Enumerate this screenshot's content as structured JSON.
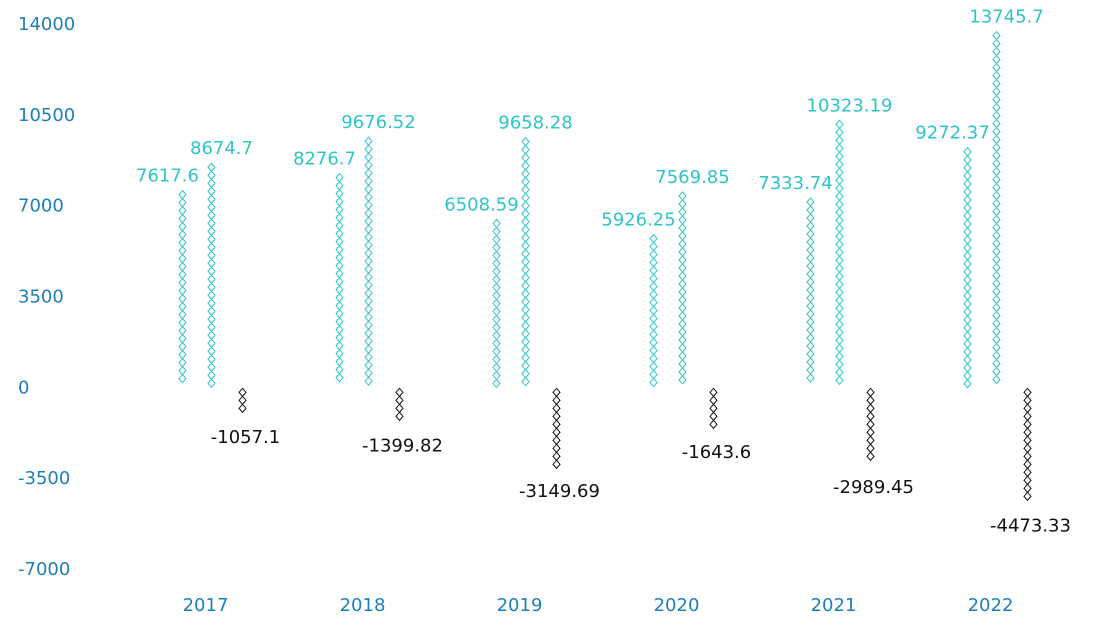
{
  "chart_data": {
    "type": "pictorial-bar",
    "categories": [
      "2017",
      "2018",
      "2019",
      "2020",
      "2021",
      "2022"
    ],
    "series": [
      {
        "color": "#2ec4c8",
        "values": [
          7617.6,
          8276.7,
          6508.59,
          5926.25,
          7333.74,
          9272.37
        ]
      },
      {
        "color": "#2ec4c8",
        "values": [
          8674.7,
          9676.52,
          9658.28,
          7569.85,
          10323.19,
          13745.7
        ]
      },
      {
        "color": "#111111",
        "values": [
          -1057.1,
          -1399.82,
          -3149.69,
          -1643.6,
          -2989.45,
          -4473.33
        ]
      }
    ],
    "ylim": [
      -7000,
      14000
    ],
    "yticks": [
      -7000,
      -3500,
      0,
      3500,
      7000,
      10500,
      14000
    ]
  }
}
